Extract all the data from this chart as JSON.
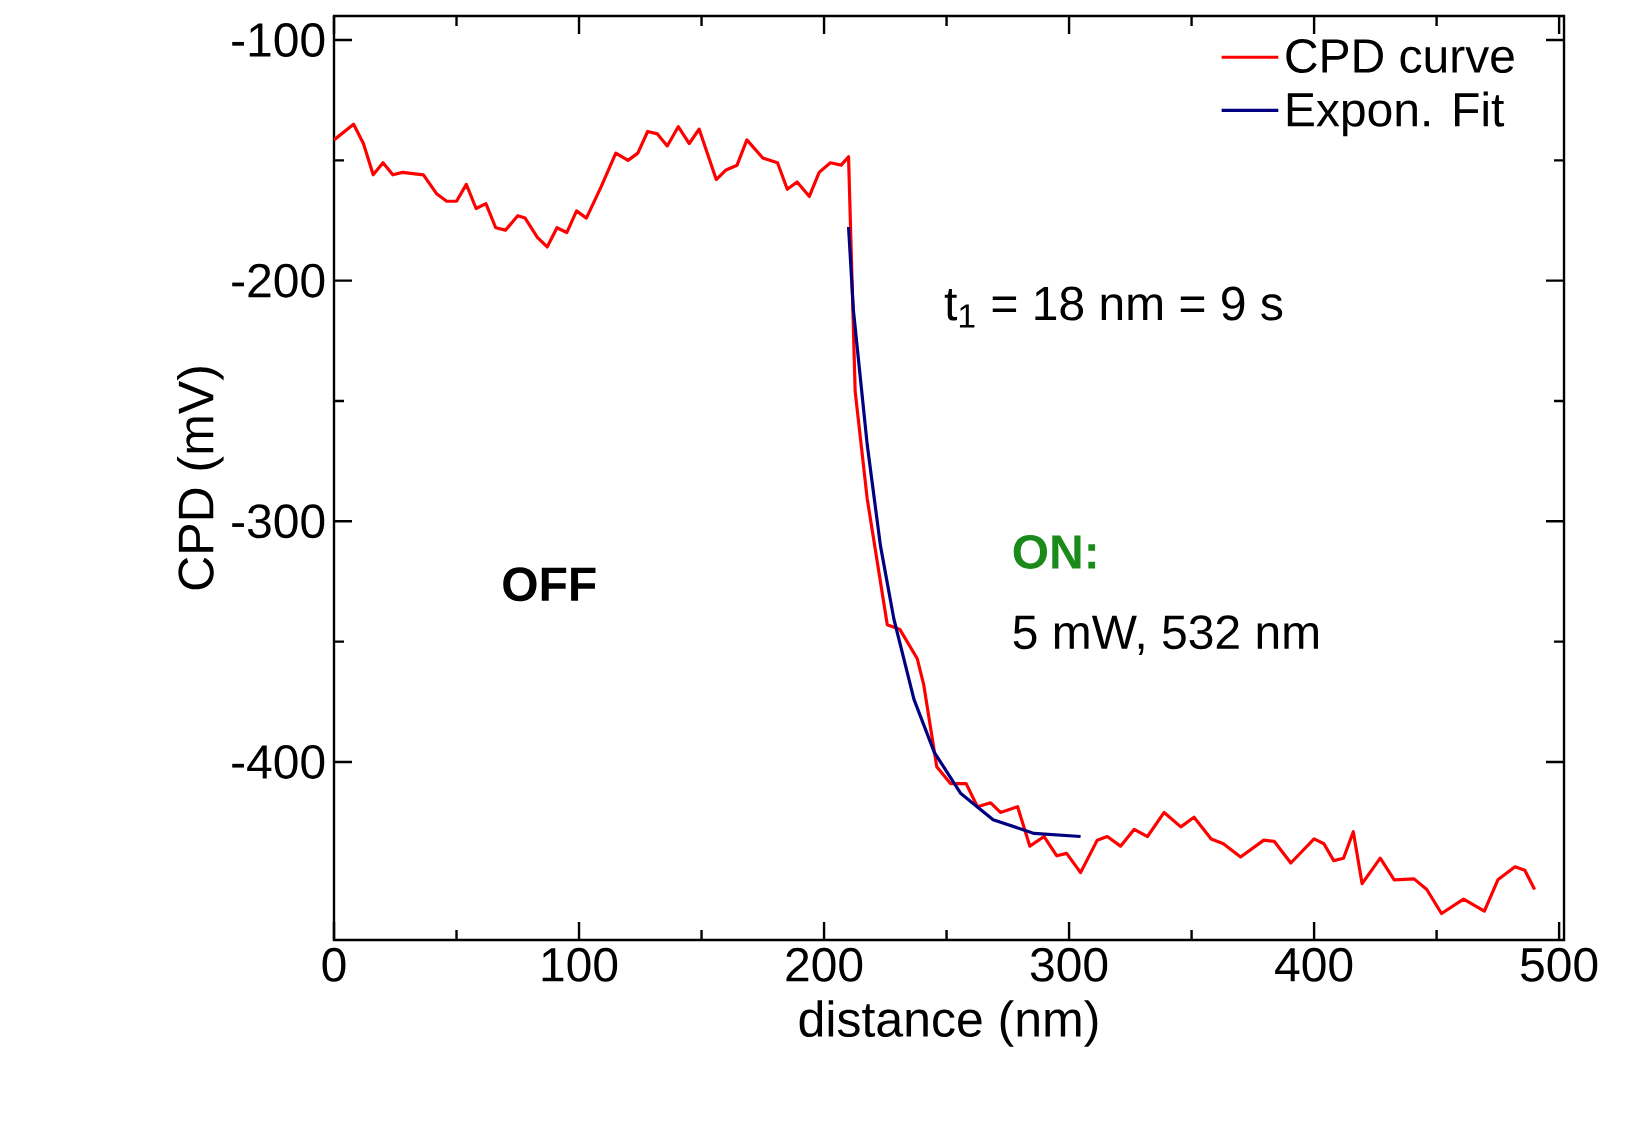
{
  "chart_data": {
    "type": "line",
    "xlabel": "distance (nm)",
    "ylabel": "CPD (mV)",
    "xlim": [
      0,
      502
    ],
    "ylim": [
      -474,
      -90
    ],
    "xticks": [
      0,
      100,
      200,
      300,
      400,
      500
    ],
    "yticks": [
      -100,
      -200,
      -300,
      -400
    ],
    "legend": "top right",
    "grid": false,
    "line_style": "solid",
    "marker": "none",
    "annotations": [
      "t$_{1}$ = 18 nm = 9 s",
      "OFF",
      "ON:",
      "5 mW, 532 nm"
    ],
    "series": [
      {
        "name": "CPD curve",
        "color": "#ff0000",
        "x": [
          0,
          8,
          12,
          16,
          20,
          24,
          28,
          36.5,
          42,
          46,
          50,
          54,
          58,
          62,
          66,
          70,
          75,
          78,
          83,
          87,
          91,
          95,
          99,
          103,
          109,
          115,
          120,
          124,
          128,
          132,
          136,
          140.5,
          145,
          149,
          156,
          160,
          164.5,
          168.5,
          175,
          181,
          185,
          189,
          194,
          198,
          202.6,
          207,
          210,
          212.7,
          217.6,
          225.8,
          231,
          238,
          240.7,
          246,
          251.6,
          258,
          262.6,
          268,
          272,
          279,
          284,
          289.8,
          295,
          299,
          304.7,
          311.5,
          315.6,
          321,
          326.6,
          332,
          338.8,
          345.6,
          351,
          358,
          363,
          370,
          379.5,
          383.7,
          390.5,
          400,
          404,
          408,
          412,
          416,
          419.6,
          427,
          432.7,
          440.8,
          446,
          452,
          461,
          469.5,
          475,
          482,
          486,
          490
        ],
        "values": [
          -141.5,
          -135,
          -143,
          -156,
          -151,
          -156,
          -155,
          -156,
          -164,
          -167,
          -167,
          -160,
          -170,
          -168,
          -178,
          -179,
          -173,
          -174,
          -182,
          -186,
          -178,
          -180,
          -171,
          -174,
          -161,
          -147,
          -150,
          -147,
          -138,
          -139,
          -144,
          -136,
          -143,
          -137,
          -158,
          -154,
          -152,
          -141.5,
          -149,
          -151,
          -162,
          -159,
          -165,
          -155,
          -151,
          -152,
          -148.5,
          -246,
          -290.5,
          -343,
          -345,
          -357,
          -368,
          -402,
          -409,
          -409,
          -418.6,
          -417,
          -421,
          -418.6,
          -435,
          -431,
          -439,
          -438,
          -446,
          -432.5,
          -431,
          -435,
          -428,
          -431,
          -421,
          -427,
          -423,
          -432,
          -434,
          -439.5,
          -432.5,
          -433,
          -442,
          -432,
          -434,
          -441,
          -440,
          -429,
          -450.6,
          -440,
          -449,
          -448.6,
          -453,
          -463,
          -457,
          -462,
          -449,
          -443.6,
          -445,
          -453
        ]
      },
      {
        "name": "Expon. Fit",
        "color": "#000080",
        "x": [
          210,
          212,
          217.6,
          223,
          228.5,
          236.7,
          245,
          255.7,
          269,
          285.7,
          304.7
        ],
        "values": [
          -177.7,
          -212.5,
          -268,
          -310,
          -340.6,
          -374,
          -396,
          -413,
          -424,
          -429.7,
          -431
        ]
      }
    ]
  }
}
